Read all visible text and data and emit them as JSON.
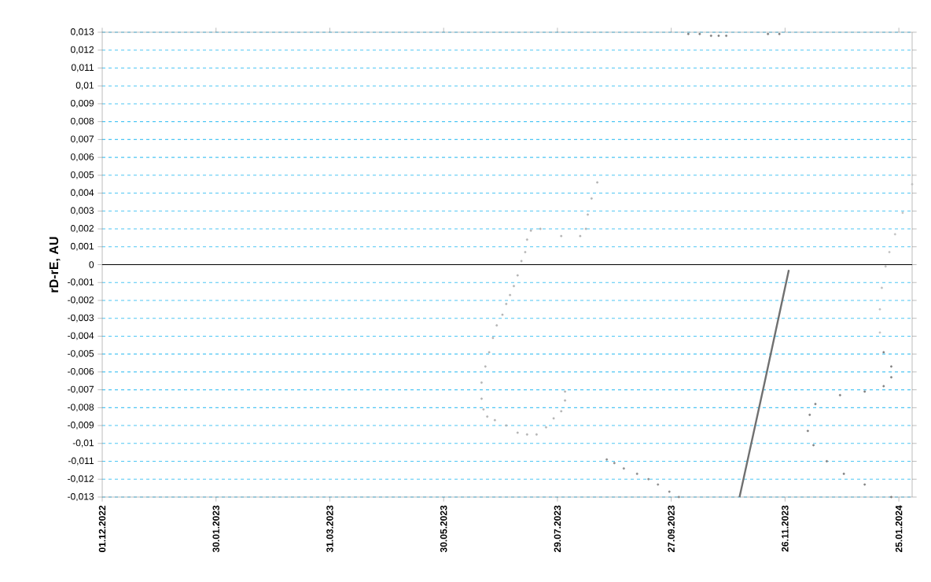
{
  "chart_data": {
    "type": "scatter",
    "ylabel": "rD-rE, AU",
    "xlim": [
      "2022-12-01",
      "2024-02-01"
    ],
    "xticks": [
      {
        "value": "2022-12-01",
        "label": "01.12.2022"
      },
      {
        "value": "2023-01-30",
        "label": "30.01.2023"
      },
      {
        "value": "2023-03-31",
        "label": "31.03.2023"
      },
      {
        "value": "2023-05-30",
        "label": "30.05.2023"
      },
      {
        "value": "2023-07-29",
        "label": "29.07.2023"
      },
      {
        "value": "2023-09-27",
        "label": "27.09.2023"
      },
      {
        "value": "2023-11-26",
        "label": "26.11.2023"
      },
      {
        "value": "2024-01-25",
        "label": "25.01.2024"
      }
    ],
    "ylim": [
      -0.013,
      0.013
    ],
    "yticks": [
      {
        "value": 0.013,
        "label": "0,013"
      },
      {
        "value": 0.012,
        "label": "0,012"
      },
      {
        "value": 0.011,
        "label": "0,011"
      },
      {
        "value": 0.01,
        "label": "0,01"
      },
      {
        "value": 0.009,
        "label": "0,009"
      },
      {
        "value": 0.008,
        "label": "0,008"
      },
      {
        "value": 0.007,
        "label": "0,007"
      },
      {
        "value": 0.006,
        "label": "0,006"
      },
      {
        "value": 0.005,
        "label": "0,005"
      },
      {
        "value": 0.004,
        "label": "0,004"
      },
      {
        "value": 0.003,
        "label": "0,003"
      },
      {
        "value": 0.002,
        "label": "0,002"
      },
      {
        "value": 0.001,
        "label": "0,001"
      },
      0,
      {
        "value": -0.001,
        "label": "-0,001"
      },
      {
        "value": -0.002,
        "label": "-0,002"
      },
      {
        "value": -0.003,
        "label": "-0,003"
      },
      {
        "value": -0.004,
        "label": "-0,004"
      },
      {
        "value": -0.005,
        "label": "-0,005"
      },
      {
        "value": -0.006,
        "label": "-0,006"
      },
      {
        "value": -0.007,
        "label": "-0,007"
      },
      {
        "value": -0.008,
        "label": "-0,008"
      },
      {
        "value": -0.009,
        "label": "-0,009"
      },
      {
        "value": -0.01,
        "label": "-0,01"
      },
      {
        "value": -0.011,
        "label": "-0,011"
      },
      {
        "value": -0.012,
        "label": "-0,012"
      },
      {
        "value": -0.013,
        "label": "-0,013"
      }
    ],
    "grid": "y",
    "marker": "circle",
    "ref_lines": [
      {
        "axis": "y",
        "value": 0,
        "color": "#000000"
      }
    ],
    "series": [
      {
        "color": "#b4b4b4",
        "x": [
          "2023-08-19",
          "2023-08-16",
          "2023-08-14",
          "2023-08-13",
          "2023-08-10",
          "2023-07-31",
          "2023-07-20",
          "2023-07-15",
          "2023-07-13",
          "2023-07-12",
          "2023-07-10",
          "2023-07-08",
          "2023-07-06",
          "2023-07-04",
          "2023-07-02",
          "2023-06-30",
          "2023-06-27",
          "2023-06-25",
          "2023-06-23",
          "2023-06-21",
          "2023-06-19",
          "2023-06-19",
          "2023-06-20",
          "2023-06-22",
          "2023-06-26",
          "2023-07-02",
          "2023-07-08",
          "2023-07-13",
          "2023-07-18",
          "2023-07-23",
          "2023-07-27",
          "2023-07-31",
          "2023-08-02",
          "2023-08-02"
        ],
        "values": [
          0.0046,
          0.0037,
          0.0028,
          0.002,
          0.0016,
          0.0016,
          0.002,
          0.0019,
          0.0014,
          0.0007,
          0.0002,
          -0.0006,
          -0.0012,
          -0.0017,
          -0.0022,
          -0.0028,
          -0.0034,
          -0.0041,
          -0.0049,
          -0.0057,
          -0.0066,
          -0.0075,
          -0.0081,
          -0.0085,
          -0.0087,
          -0.009,
          -0.0094,
          -0.0095,
          -0.0095,
          -0.0091,
          -0.0086,
          -0.0082,
          -0.0076,
          -0.0071
        ]
      },
      {
        "color": "#8c8c8c",
        "x": [
          "2023-08-24",
          "2023-08-28",
          "2023-09-02",
          "2023-09-09",
          "2023-09-15",
          "2023-09-20",
          "2023-09-26",
          "2023-10-01"
        ],
        "values": [
          -0.0109,
          -0.0111,
          -0.0114,
          -0.0117,
          -0.012,
          -0.0123,
          -0.0127,
          -0.013
        ]
      },
      {
        "color": "#808080",
        "x": [
          "2023-10-06",
          "2023-10-12",
          "2023-10-18",
          "2023-10-22",
          "2023-10-26",
          "2023-11-17",
          "2023-11-23"
        ],
        "values": [
          0.0129,
          0.0129,
          0.0128,
          0.0128,
          0.0128,
          0.0129,
          0.0129
        ]
      },
      {
        "type": "line",
        "marker": "none",
        "color": "#707070",
        "x": [
          "2023-11-02",
          "2023-11-15",
          "2023-11-28"
        ],
        "values": [
          -0.013,
          -0.0067,
          -0.0003
        ]
      },
      {
        "color": "#c0c0c0",
        "x": [
          "2024-02-01",
          "2024-01-27",
          "2024-01-23",
          "2024-01-20",
          "2024-01-18",
          "2024-01-16",
          "2024-01-15",
          "2024-01-15"
        ],
        "values": [
          0.0045,
          0.0029,
          0.0017,
          0.0007,
          -0.0001,
          -0.0013,
          -0.0025,
          -0.0038
        ]
      },
      {
        "color": "#808080",
        "x": [
          "2024-01-17",
          "2024-01-21",
          "2024-01-21",
          "2024-01-17",
          "2024-01-07",
          "2023-12-25",
          "2023-12-12",
          "2023-12-09",
          "2023-12-08",
          "2023-12-11",
          "2023-12-18",
          "2023-12-27",
          "2024-01-07",
          "2024-01-21"
        ],
        "values": [
          -0.0049,
          -0.0057,
          -0.0063,
          -0.0068,
          -0.0071,
          -0.0073,
          -0.0078,
          -0.0084,
          -0.0093,
          -0.0101,
          -0.011,
          -0.0117,
          -0.0123,
          -0.013
        ]
      }
    ]
  }
}
